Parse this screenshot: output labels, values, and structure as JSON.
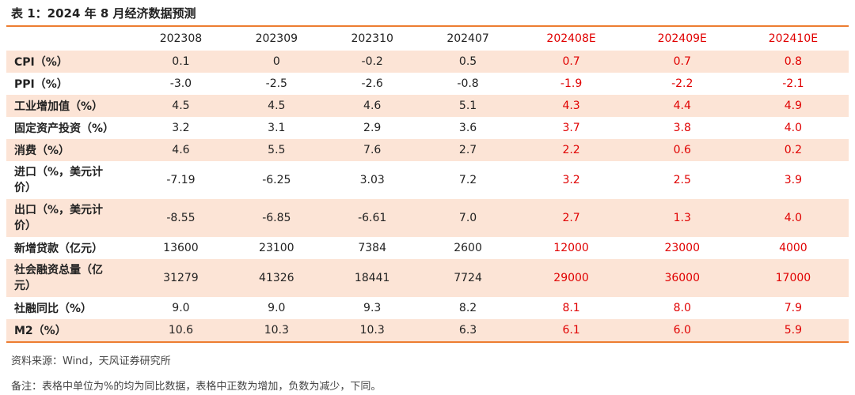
{
  "title": "表 1：2024 年 8 月经济数据预测",
  "table": {
    "header": [
      "202308",
      "202309",
      "202310",
      "202407",
      "202408E",
      "202409E",
      "202410E"
    ],
    "rows": [
      [
        "CPI（%）",
        "0.1",
        "0",
        "-0.2",
        "0.5",
        "0.7",
        "0.7",
        "0.8"
      ],
      [
        "PPI（%）",
        "-3.0",
        "-2.5",
        "-2.6",
        "-0.8",
        "-1.9",
        "-2.2",
        "-2.1"
      ],
      [
        "工业增加值（%）",
        "4.5",
        "4.5",
        "4.6",
        "5.1",
        "4.3",
        "4.4",
        "4.9"
      ],
      [
        "固定资产投资（%）",
        "3.2",
        "3.1",
        "2.9",
        "3.6",
        "3.7",
        "3.8",
        "4.0"
      ],
      [
        "消费（%）",
        "4.6",
        "5.5",
        "7.6",
        "2.7",
        "2.2",
        "0.6",
        "0.2"
      ],
      [
        "进口（%，美元计价）",
        "-7.19",
        "-6.25",
        "3.03",
        "7.2",
        "3.2",
        "2.5",
        "3.9"
      ],
      [
        "出口（%，美元计价）",
        "-8.55",
        "-6.85",
        "-6.61",
        "7.0",
        "2.7",
        "1.3",
        "4.0"
      ],
      [
        "新增贷款（亿元）",
        "13600",
        "23100",
        "7384",
        "2600",
        "12000",
        "23000",
        "4000"
      ],
      [
        "社会融资总量（亿元）",
        "31279",
        "41326",
        "18441",
        "7724",
        "29000",
        "36000",
        "17000"
      ],
      [
        "社融同比（%）",
        "9.0",
        "9.0",
        "9.3",
        "8.2",
        "8.1",
        "8.0",
        "7.9"
      ],
      [
        "M2（%）",
        "10.6",
        "10.3",
        "10.3",
        "6.3",
        "6.1",
        "6.0",
        "5.9"
      ]
    ]
  },
  "source": "资料来源：Wind，天风证券研究所",
  "note": "备注：表格中单位为%的均为同比数据，表格中正数为增加，负数为减少，下同。"
}
